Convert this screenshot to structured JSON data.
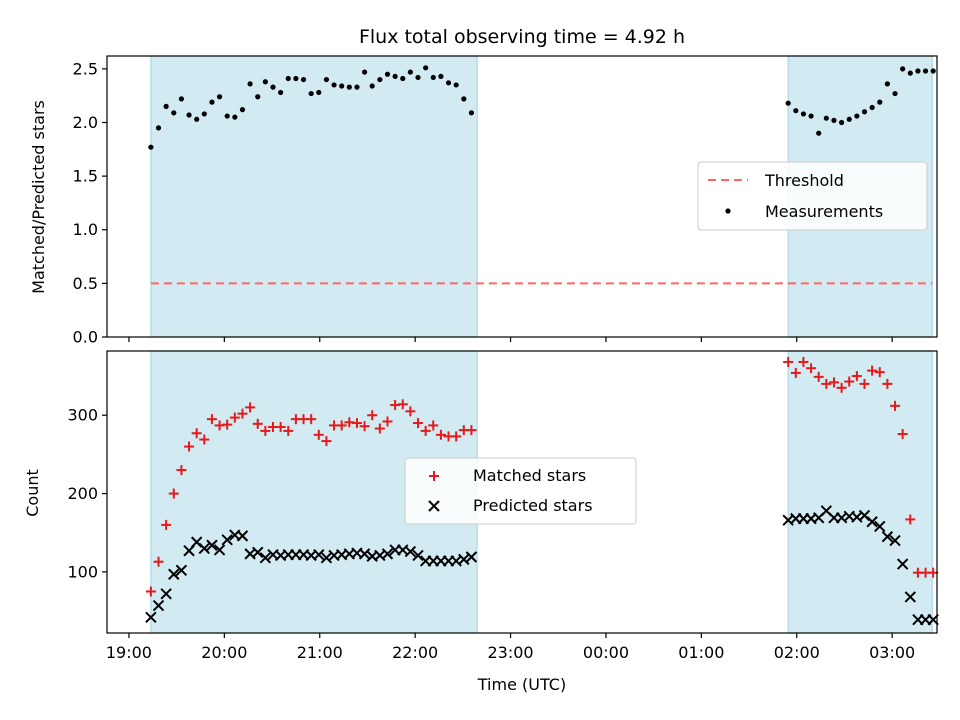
{
  "title": "Flux total observing time = 4.92 h",
  "xlabel": "Time (UTC)",
  "x_ticks": [
    "19:00",
    "20:00",
    "21:00",
    "22:00",
    "23:00",
    "00:00",
    "01:00",
    "02:00",
    "03:00"
  ],
  "colors": {
    "shade": "#add8e6",
    "threshold": "#ff6666",
    "matched": "#e41a1c",
    "measurements": "#000000",
    "predicted": "#000000"
  },
  "chart_data": [
    {
      "type": "scatter",
      "ylabel": "Matched/Predicted stars",
      "x_unit": "hours since 19:00 UTC",
      "xlim": [
        -0.23,
        8.47
      ],
      "ylim": [
        0,
        2.62
      ],
      "y_ticks": [
        "0.0",
        "0.5",
        "1.0",
        "1.5",
        "2.0",
        "2.5"
      ],
      "y_tick_values": [
        0,
        0.5,
        1.0,
        1.5,
        2.0,
        2.5
      ],
      "threshold": 0.5,
      "shaded_regions": [
        [
          0.23,
          3.65
        ],
        [
          6.91,
          8.42
        ]
      ],
      "legend": {
        "position": "center-right",
        "entries": [
          "Threshold",
          "Measurements"
        ]
      },
      "series": [
        {
          "name": "Measurements",
          "x": [
            0.23,
            0.31,
            0.39,
            0.47,
            0.55,
            0.63,
            0.71,
            0.79,
            0.87,
            0.95,
            1.03,
            1.11,
            1.19,
            1.27,
            1.35,
            1.43,
            1.51,
            1.59,
            1.67,
            1.75,
            1.83,
            1.91,
            1.99,
            2.07,
            2.15,
            2.23,
            2.31,
            2.39,
            2.47,
            2.55,
            2.63,
            2.71,
            2.79,
            2.87,
            2.95,
            3.03,
            3.11,
            3.19,
            3.27,
            3.35,
            3.43,
            3.51,
            3.59,
            6.91,
            6.99,
            7.07,
            7.15,
            7.23,
            7.31,
            7.39,
            7.47,
            7.55,
            7.63,
            7.71,
            7.79,
            7.87,
            7.95,
            8.03,
            8.11,
            8.19,
            8.27,
            8.35,
            8.43
          ],
          "y": [
            1.77,
            1.95,
            2.15,
            2.09,
            2.22,
            2.07,
            2.03,
            2.08,
            2.19,
            2.24,
            2.06,
            2.05,
            2.12,
            2.36,
            2.24,
            2.38,
            2.33,
            2.28,
            2.41,
            2.41,
            2.4,
            2.27,
            2.28,
            2.4,
            2.35,
            2.34,
            2.33,
            2.33,
            2.47,
            2.34,
            2.4,
            2.45,
            2.43,
            2.41,
            2.47,
            2.42,
            2.51,
            2.42,
            2.43,
            2.37,
            2.35,
            2.22,
            2.09,
            2.18,
            2.11,
            2.08,
            2.06,
            1.9,
            2.04,
            2.02,
            2.0,
            2.03,
            2.06,
            2.1,
            2.14,
            2.19,
            2.36,
            2.27,
            2.5,
            2.46,
            2.48,
            2.48,
            2.48
          ]
        }
      ]
    },
    {
      "type": "scatter",
      "ylabel": "Count",
      "x_unit": "hours since 19:00 UTC",
      "xlim": [
        -0.23,
        8.47
      ],
      "ylim": [
        22,
        382
      ],
      "y_ticks": [
        "100",
        "200",
        "300"
      ],
      "y_tick_values": [
        100,
        200,
        300
      ],
      "shaded_regions": [
        [
          0.23,
          3.65
        ],
        [
          6.91,
          8.42
        ]
      ],
      "legend": {
        "position": "center",
        "entries": [
          "Matched stars",
          "Predicted stars"
        ]
      },
      "series": [
        {
          "name": "Matched stars",
          "marker": "+",
          "x": [
            0.23,
            0.31,
            0.39,
            0.47,
            0.55,
            0.63,
            0.71,
            0.79,
            0.87,
            0.95,
            1.03,
            1.11,
            1.19,
            1.27,
            1.35,
            1.43,
            1.51,
            1.59,
            1.67,
            1.75,
            1.83,
            1.91,
            1.99,
            2.07,
            2.15,
            2.23,
            2.31,
            2.39,
            2.47,
            2.55,
            2.63,
            2.71,
            2.79,
            2.87,
            2.95,
            3.03,
            3.11,
            3.19,
            3.27,
            3.35,
            3.43,
            3.51,
            3.59,
            6.91,
            6.99,
            7.07,
            7.15,
            7.23,
            7.31,
            7.39,
            7.47,
            7.55,
            7.63,
            7.71,
            7.79,
            7.87,
            7.95,
            8.03,
            8.11,
            8.19,
            8.27,
            8.35,
            8.43
          ],
          "y": [
            75,
            113,
            160,
            200,
            230,
            260,
            277,
            269,
            295,
            287,
            288,
            297,
            302,
            310,
            289,
            280,
            285,
            285,
            280,
            295,
            295,
            295,
            275,
            267,
            287,
            287,
            291,
            290,
            286,
            300,
            283,
            292,
            313,
            314,
            305,
            290,
            280,
            287,
            275,
            273,
            273,
            281,
            281,
            368,
            354,
            368,
            360,
            349,
            340,
            342,
            335,
            343,
            350,
            340,
            357,
            355,
            340,
            312,
            276,
            167,
            99,
            99,
            99
          ]
        },
        {
          "name": "Predicted stars",
          "marker": "x",
          "x": [
            0.23,
            0.31,
            0.39,
            0.47,
            0.55,
            0.63,
            0.71,
            0.79,
            0.87,
            0.95,
            1.03,
            1.11,
            1.19,
            1.27,
            1.35,
            1.43,
            1.51,
            1.59,
            1.67,
            1.75,
            1.83,
            1.91,
            1.99,
            2.07,
            2.15,
            2.23,
            2.31,
            2.39,
            2.47,
            2.55,
            2.63,
            2.71,
            2.79,
            2.87,
            2.95,
            3.03,
            3.11,
            3.19,
            3.27,
            3.35,
            3.43,
            3.51,
            3.59,
            6.91,
            6.99,
            7.07,
            7.15,
            7.23,
            7.31,
            7.39,
            7.47,
            7.55,
            7.63,
            7.71,
            7.79,
            7.87,
            7.95,
            8.03,
            8.11,
            8.19,
            8.27,
            8.35,
            8.43
          ],
          "y": [
            42,
            57,
            72,
            97,
            102,
            127,
            138,
            130,
            134,
            128,
            141,
            147,
            146,
            123,
            125,
            118,
            122,
            121,
            122,
            122,
            122,
            121,
            122,
            118,
            121,
            122,
            123,
            124,
            123,
            120,
            121,
            123,
            128,
            128,
            126,
            121,
            114,
            114,
            114,
            114,
            114,
            116,
            119,
            166,
            168,
            168,
            168,
            169,
            178,
            169,
            169,
            171,
            170,
            172,
            164,
            158,
            145,
            140,
            110,
            68,
            39,
            39,
            39
          ]
        }
      ]
    }
  ]
}
